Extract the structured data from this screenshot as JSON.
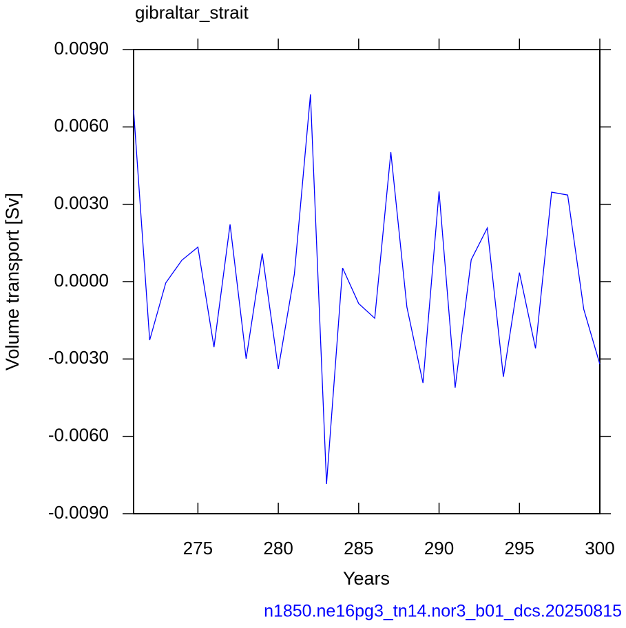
{
  "chart_data": {
    "type": "line",
    "title": "gibraltar_strait",
    "subtitle": "n1850.ne16pg3_tn14.nor3_b01_dcs.20250815",
    "x_label": "Years",
    "y_label": "Volume transport [Sv]",
    "x": [
      271,
      272,
      273,
      274,
      275,
      276,
      277,
      278,
      279,
      280,
      281,
      282,
      283,
      284,
      285,
      286,
      287,
      288,
      289,
      290,
      291,
      292,
      293,
      294,
      295,
      296,
      297,
      298,
      299,
      300
    ],
    "series": [
      {
        "color": "#0000ff",
        "values": [
          0.00665,
          -0.00227,
          -5e-05,
          0.00083,
          0.00134,
          -0.00254,
          0.00222,
          -0.00299,
          0.00109,
          -0.00339,
          0.00029,
          0.00726,
          -0.00785,
          0.00053,
          -0.00085,
          -0.00142,
          0.00502,
          -0.00099,
          -0.00393,
          0.0035,
          -0.00411,
          0.00085,
          0.00208,
          -0.00369,
          0.00035,
          -0.00259,
          0.00347,
          0.00336,
          -0.00107,
          -0.0032
        ]
      }
    ],
    "xlim": [
      271,
      300
    ],
    "xticks": [
      275,
      280,
      285,
      290,
      295,
      300
    ],
    "ylim": [
      -0.009,
      0.009
    ],
    "yticks": [
      {
        "value": -0.009,
        "label": "-0.0090"
      },
      {
        "value": -0.006,
        "label": "-0.0060"
      },
      {
        "value": -0.003,
        "label": "-0.0030"
      },
      {
        "value": 0,
        "label": "0.0000"
      },
      {
        "value": 0.003,
        "label": "0.0030"
      },
      {
        "value": 0.006,
        "label": "0.0060"
      },
      {
        "value": 0.009,
        "label": "0.0090"
      }
    ],
    "grid": false
  }
}
